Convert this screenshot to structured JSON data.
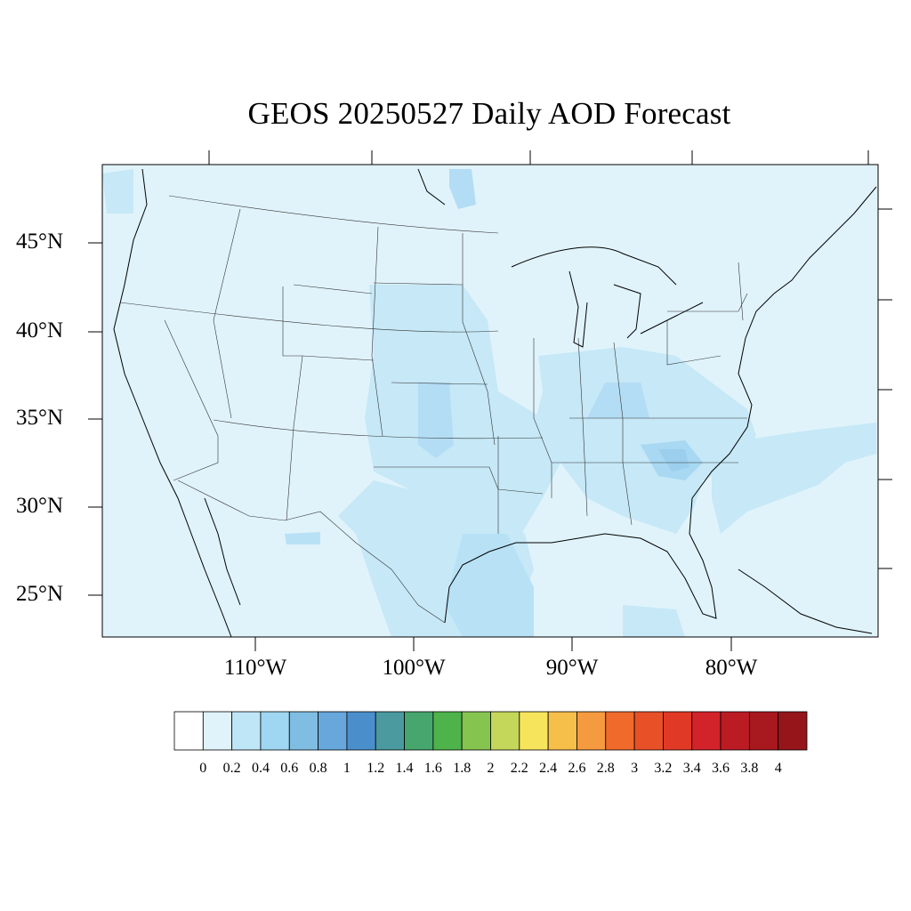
{
  "title": "GEOS 20250527 Daily AOD Forecast",
  "map": {
    "background_color": "#e0f3fb",
    "lat_labels": [
      "45°N",
      "40°N",
      "35°N",
      "30°N",
      "25°N"
    ],
    "lon_labels": [
      "110°W",
      "100°W",
      "90°W",
      "80°W"
    ]
  },
  "colorbar": {
    "labels": [
      "0",
      "0.2",
      "0.4",
      "0.6",
      "0.8",
      "1",
      "1.2",
      "1.4",
      "1.6",
      "1.8",
      "2",
      "2.2",
      "2.4",
      "2.6",
      "2.8",
      "3",
      "3.2",
      "3.4",
      "3.6",
      "3.8",
      "4"
    ],
    "colors": [
      "#ffffff",
      "#e0f3fb",
      "#bfe6f7",
      "#9fd6f1",
      "#80bde3",
      "#67a7dc",
      "#4a8fcc",
      "#4a9aa0",
      "#46a66d",
      "#4db34a",
      "#86c450",
      "#c4d75a",
      "#f7e45d",
      "#f6bf4a",
      "#f59a3f",
      "#f06a2b",
      "#e85028",
      "#e03a26",
      "#d3232a",
      "#bb1c24",
      "#a8181f",
      "#95151b"
    ]
  }
}
